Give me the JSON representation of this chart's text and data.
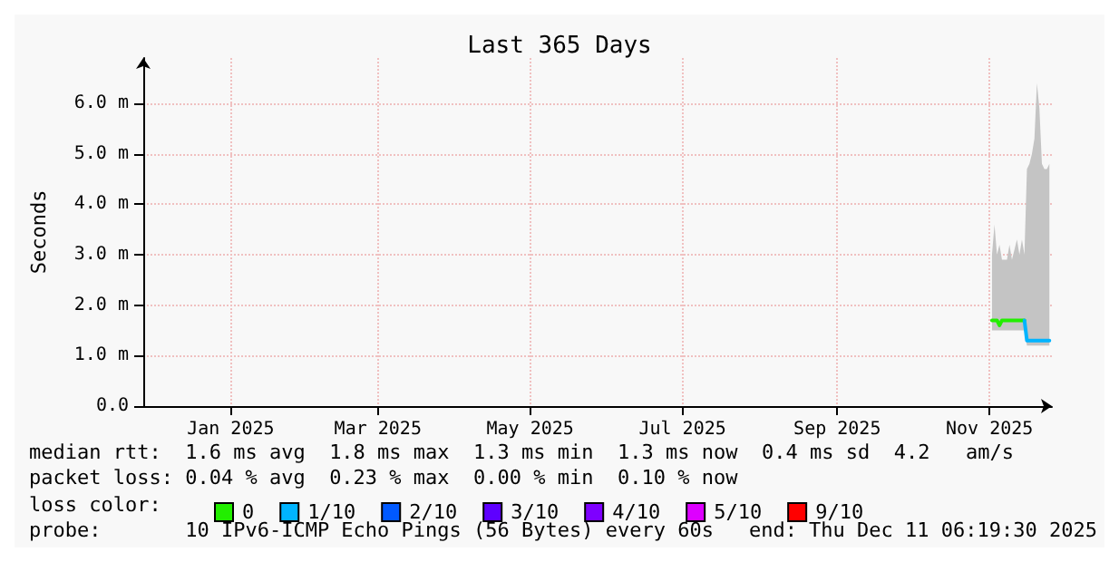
{
  "chart_data": {
    "type": "line",
    "title": "Last 365 Days",
    "ylabel": "Seconds",
    "legend_title": "loss color:",
    "x": [
      "2025-11-17",
      "2025-11-18",
      "2025-11-19",
      "2025-11-20",
      "2025-11-21",
      "2025-11-22",
      "2025-11-23",
      "2025-11-24",
      "2025-11-25",
      "2025-11-26",
      "2025-11-27",
      "2025-11-28",
      "2025-11-29",
      "2025-11-30",
      "2025-12-01",
      "2025-12-02",
      "2025-12-03",
      "2025-12-04",
      "2025-12-05",
      "2025-12-06",
      "2025-12-07",
      "2025-12-08",
      "2025-12-09",
      "2025-12-10"
    ],
    "series": [
      {
        "name": "0",
        "color": "#22ee00",
        "values": [
          1.7,
          1.7,
          1.7,
          1.6,
          1.7,
          1.7,
          1.7,
          1.7,
          1.7,
          1.7,
          1.7,
          1.7,
          1.7,
          1.7,
          null,
          null,
          null,
          null,
          null,
          null,
          null,
          null,
          null,
          null
        ],
        "lower": [
          1.5,
          1.5,
          1.5,
          1.5,
          1.5,
          1.5,
          1.5,
          1.5,
          1.5,
          1.5,
          1.5,
          1.5,
          1.5,
          1.5,
          1.2,
          1.2,
          1.2,
          1.2,
          1.2,
          1.2,
          1.2,
          1.2,
          1.2,
          1.2
        ],
        "upper": [
          3.0,
          3.6,
          3.0,
          3.2,
          2.9,
          2.9,
          2.9,
          3.2,
          2.9,
          3.1,
          3.3,
          3.0,
          3.3,
          3.0,
          4.7,
          4.8,
          5.0,
          5.3,
          6.4,
          5.9,
          4.8,
          4.7,
          4.7,
          4.8
        ]
      },
      {
        "name": "1/10",
        "color": "#00b4ff",
        "values": [
          null,
          null,
          null,
          null,
          null,
          null,
          null,
          null,
          null,
          null,
          null,
          null,
          null,
          1.7,
          1.3,
          1.3,
          1.3,
          1.3,
          1.3,
          1.3,
          1.3,
          1.3,
          1.3,
          1.3
        ]
      },
      {
        "name": "2/10",
        "color": "#0059ff",
        "values": [
          null,
          null,
          null,
          null,
          null,
          null,
          null,
          null,
          null,
          null,
          null,
          null,
          null,
          null,
          null,
          null,
          null,
          null,
          null,
          null,
          null,
          null,
          null,
          null
        ]
      },
      {
        "name": "3/10",
        "color": "#5e00ff",
        "values": [
          null,
          null,
          null,
          null,
          null,
          null,
          null,
          null,
          null,
          null,
          null,
          null,
          null,
          null,
          null,
          null,
          null,
          null,
          null,
          null,
          null,
          null,
          null,
          null
        ]
      },
      {
        "name": "4/10",
        "color": "#7e00ff",
        "values": [
          null,
          null,
          null,
          null,
          null,
          null,
          null,
          null,
          null,
          null,
          null,
          null,
          null,
          null,
          null,
          null,
          null,
          null,
          null,
          null,
          null,
          null,
          null,
          null
        ]
      },
      {
        "name": "5/10",
        "color": "#dd00ff",
        "values": [
          null,
          null,
          null,
          null,
          null,
          null,
          null,
          null,
          null,
          null,
          null,
          null,
          null,
          null,
          null,
          null,
          null,
          null,
          null,
          null,
          null,
          null,
          null,
          null
        ]
      },
      {
        "name": "9/10",
        "color": "#ff0000",
        "values": [
          null,
          null,
          null,
          null,
          null,
          null,
          null,
          null,
          null,
          null,
          null,
          null,
          null,
          null,
          null,
          null,
          null,
          null,
          null,
          null,
          null,
          null,
          null,
          null
        ]
      }
    ],
    "xlim": [
      "2024-12-12",
      "2025-12-11"
    ],
    "xticks": [
      {
        "value": "2025-01-16",
        "label": "Jan 2025"
      },
      {
        "value": "2025-03-16",
        "label": "Mar 2025"
      },
      {
        "value": "2025-05-16",
        "label": "May 2025"
      },
      {
        "value": "2025-07-16",
        "label": "Jul 2025"
      },
      {
        "value": "2025-09-16",
        "label": "Sep 2025"
      },
      {
        "value": "2025-11-16",
        "label": "Nov 2025"
      }
    ],
    "ylim": [
      0,
      6.9
    ],
    "yticks": [
      {
        "value": 0,
        "label": "0.0"
      },
      {
        "value": 1,
        "label": "1.0 m"
      },
      {
        "value": 2,
        "label": "2.0 m"
      },
      {
        "value": 3,
        "label": "3.0 m"
      },
      {
        "value": 4,
        "label": "4.0 m"
      },
      {
        "value": 5,
        "label": "5.0 m"
      },
      {
        "value": 6,
        "label": "6.0 m"
      }
    ],
    "grid": true,
    "legend": "bottom",
    "marker": "none",
    "line_style": "solid",
    "annotations": [
      "median rtt:  1.6 ms avg  1.8 ms max  1.3 ms min  1.3 ms now  0.4 ms sd  4.2   am/s",
      "packet loss: 0.04 % avg  0.23 % max  0.00 % min  0.10 % now",
      "probe:       10 IPv6-ICMP Echo Pings (56 Bytes) every 60s",
      "end: Thu Dec 11 06:19:30 2025"
    ]
  }
}
